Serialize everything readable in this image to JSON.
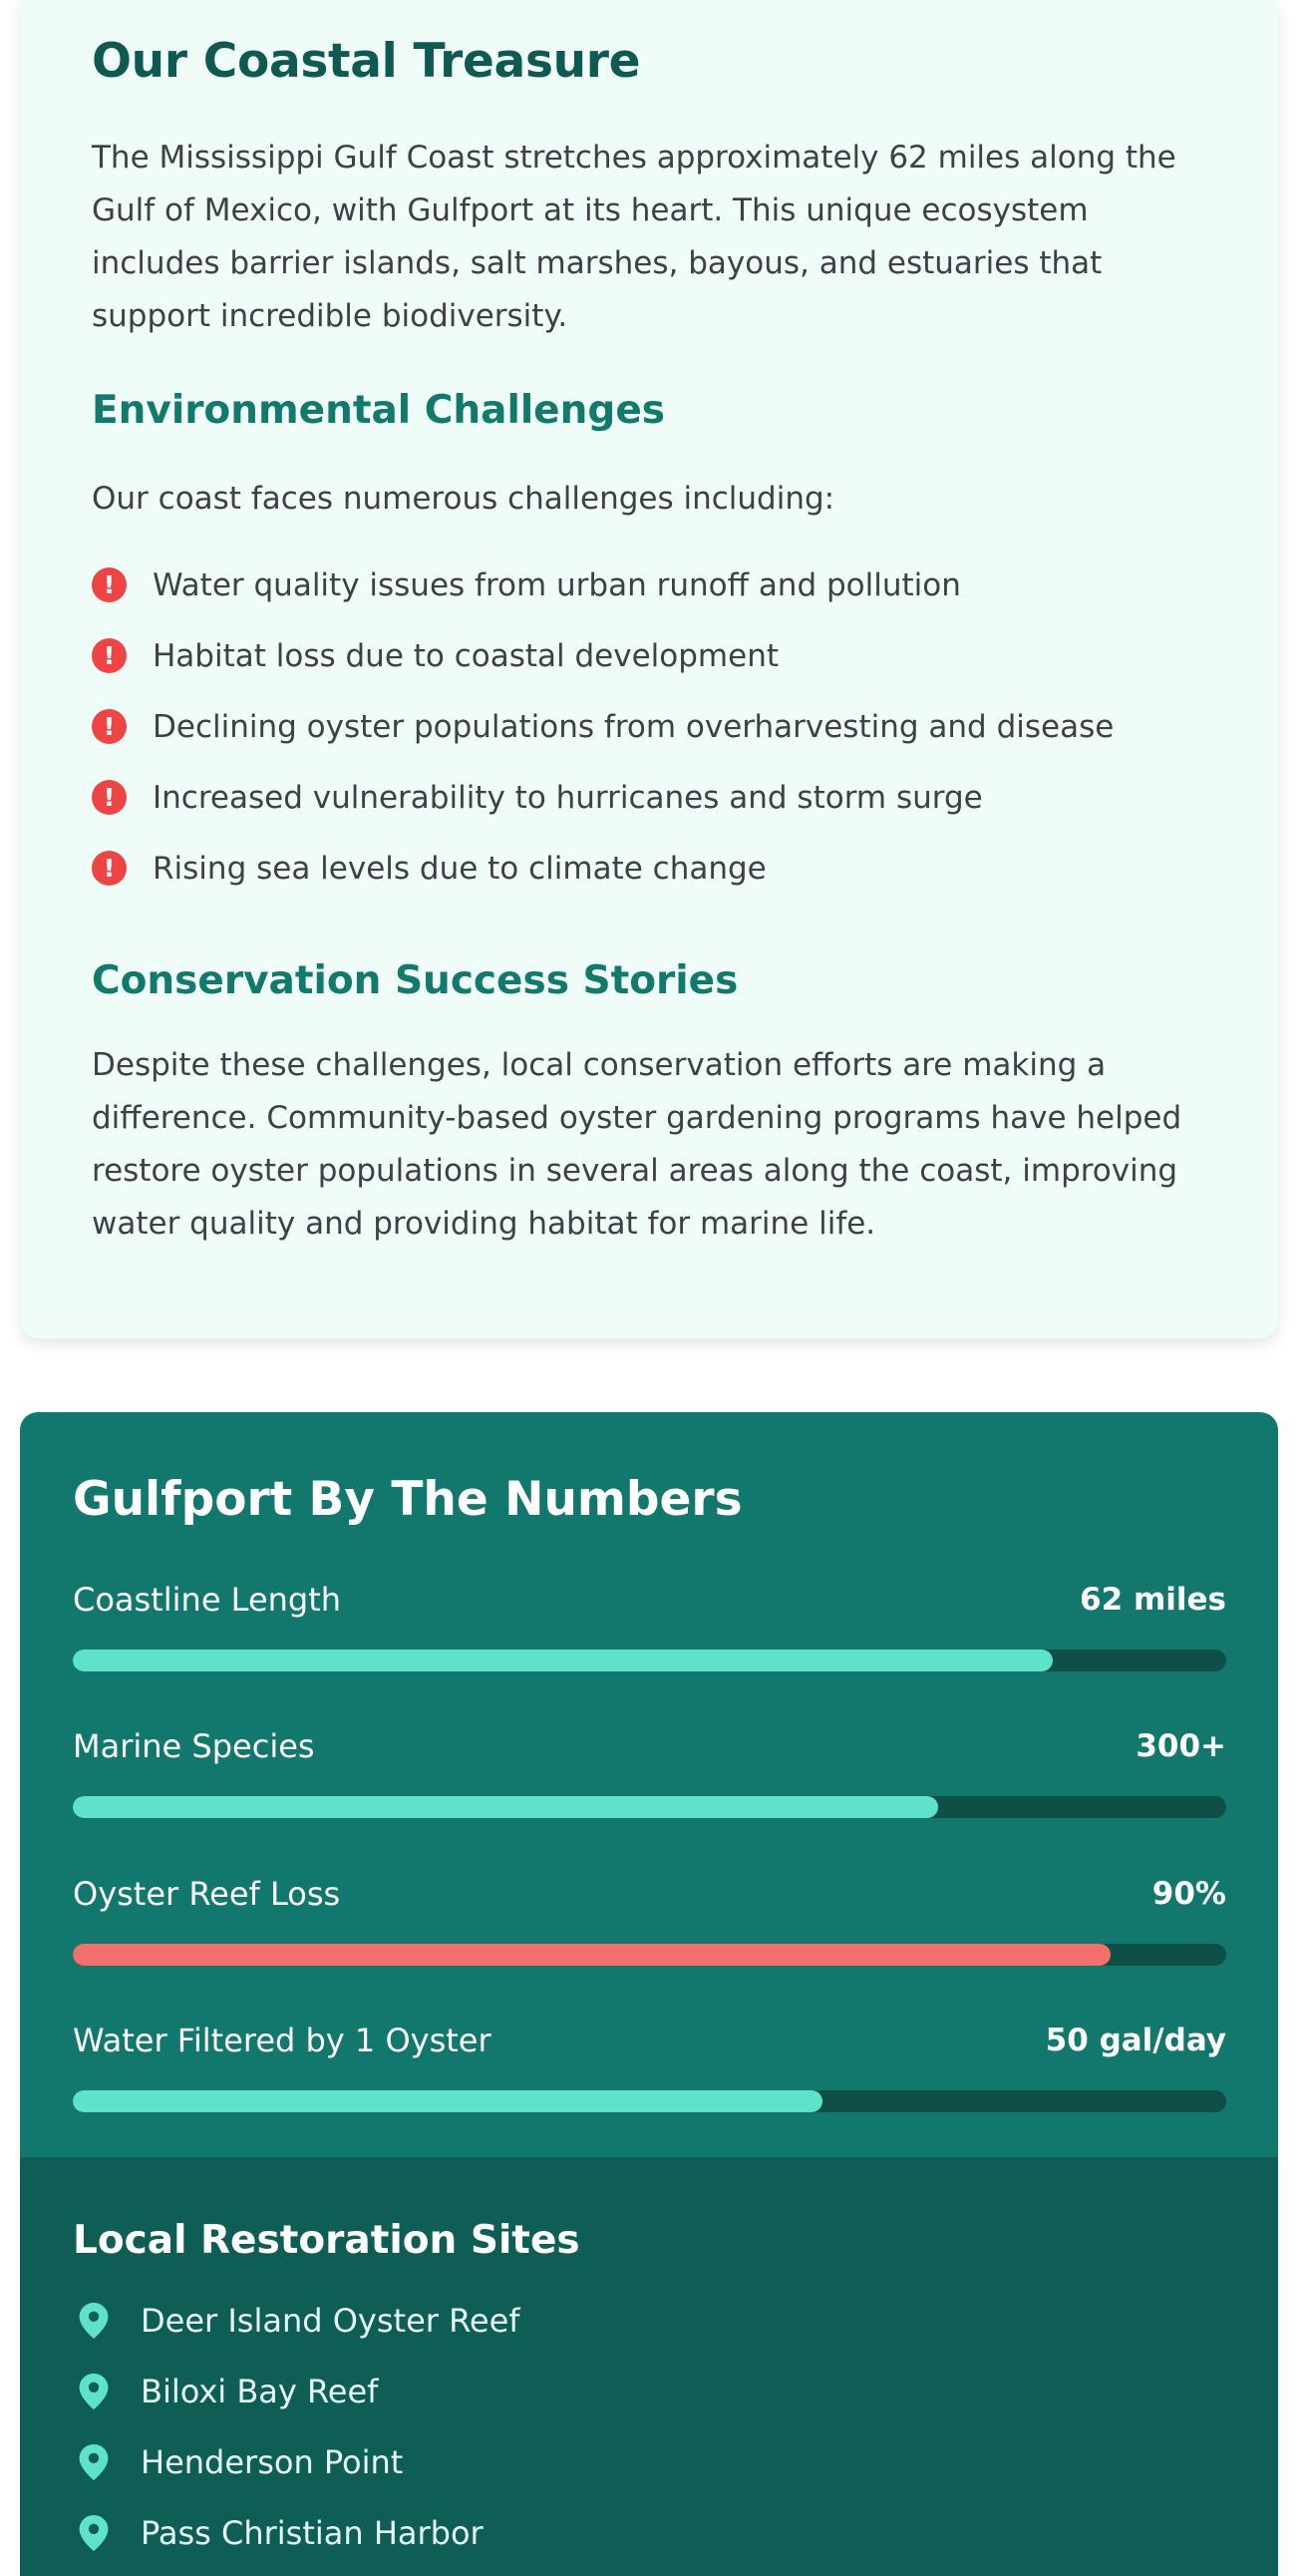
{
  "treasure": {
    "title": "Our Coastal Treasure",
    "intro": "The Mississippi Gulf Coast stretches approximately 62 miles along the Gulf of Mexico, with Gulfport at its heart. This unique ecosystem includes barrier islands, salt marshes, bayous, and estuaries that support incredible biodiversity.",
    "challenges_title": "Environmental Challenges",
    "challenges_lead": "Our coast faces numerous challenges including:",
    "challenges": [
      "Water quality issues from urban runoff and pollution",
      "Habitat loss due to coastal development",
      "Declining oyster populations from overharvesting and disease",
      "Increased vulnerability to hurricanes and storm surge",
      "Rising sea levels due to climate change"
    ],
    "success_title": "Conservation Success Stories",
    "success_text": "Despite these challenges, local conservation efforts are making a difference. Community-based oyster gardening programs have helped restore oyster populations in several areas along the coast, improving water quality and providing habitat for marine life.",
    "alert_icon": "alert-circle-icon",
    "alert_color": "#ef4444"
  },
  "numbers": {
    "title": "Gulfport By The Numbers",
    "stats": [
      {
        "label": "Coastline Length",
        "value": "62 miles",
        "fill": 0.85,
        "color": "#5ee3c9"
      },
      {
        "label": "Marine Species",
        "value": "300+",
        "fill": 0.75,
        "color": "#5ee3c9"
      },
      {
        "label": "Oyster Reef Loss",
        "value": "90%",
        "fill": 0.9,
        "color": "#f2706b"
      },
      {
        "label": "Water Filtered by 1 Oyster",
        "value": "50 gal/day",
        "fill": 0.65,
        "color": "#5ee3c9"
      }
    ]
  },
  "sites": {
    "title": "Local Restoration Sites",
    "pin_icon": "map-pin-icon",
    "pin_color": "#5ee3c9",
    "items": [
      "Deer Island Oyster Reef",
      "Biloxi Bay Reef",
      "Henderson Point",
      "Pass Christian Harbor"
    ]
  }
}
